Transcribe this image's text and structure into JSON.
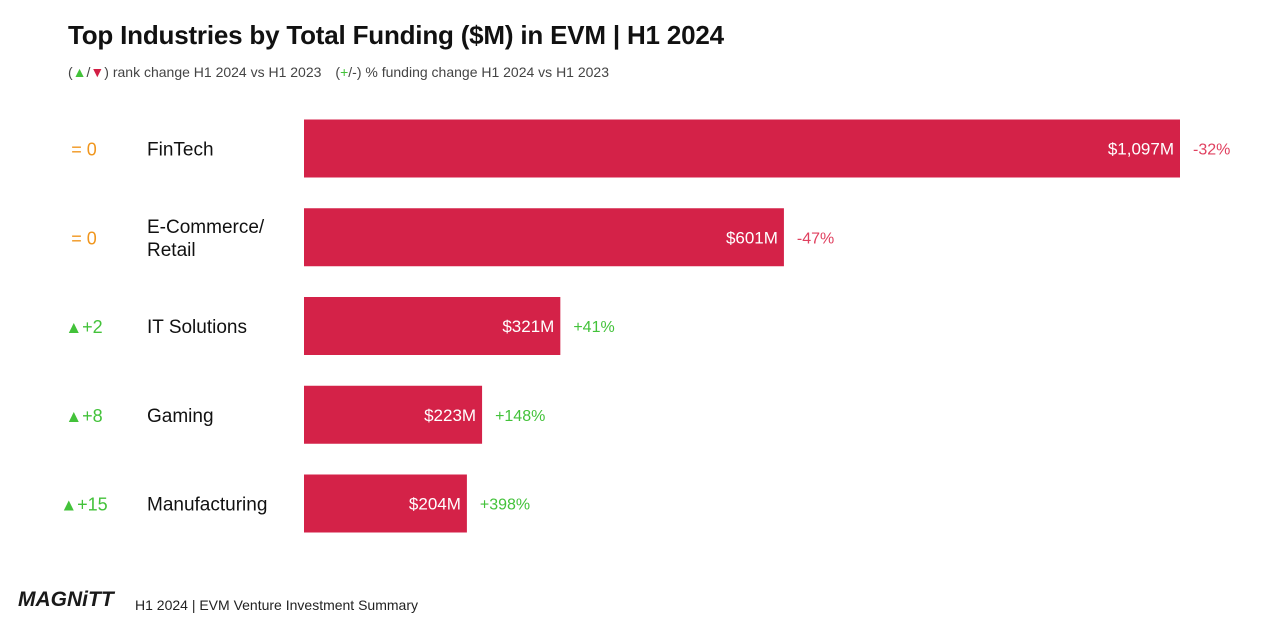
{
  "title": "Top Industries by Total Funding ($M) in EVM | H1 2024",
  "subtitle": {
    "part1_open": "(",
    "part1_up": "▲",
    "part1_sep": "/",
    "part1_down": "▼",
    "part1_close": ") rank change H1 2024 vs H1 2023",
    "part2_open": "(",
    "part2_plus": "+",
    "part2_close": "/-) % funding change H1 2024 vs H1 2023"
  },
  "colors": {
    "bar": "#d42248",
    "positive": "#43c23a",
    "negative": "#e0405f",
    "neutral": "#f0961e",
    "text": "#111111"
  },
  "chart_data": {
    "type": "bar",
    "orientation": "horizontal",
    "unit": "$M",
    "categories": [
      [
        "FinTech"
      ],
      [
        "E-Commerce/",
        "Retail"
      ],
      [
        "IT Solutions"
      ],
      [
        "Gaming"
      ],
      [
        "Manufacturing"
      ]
    ],
    "values": [
      1097,
      601,
      321,
      223,
      204
    ],
    "value_labels": [
      "$1,097M",
      "$601M",
      "$321M",
      "$223M",
      "$204M"
    ],
    "pct_change": [
      "-32%",
      "-47%",
      "+41%",
      "+148%",
      "+398%"
    ],
    "pct_direction": [
      "down",
      "down",
      "up",
      "up",
      "up"
    ],
    "rank_change": [
      {
        "symbol": "=",
        "text": "0",
        "direction": "neutral"
      },
      {
        "symbol": "=",
        "text": "0",
        "direction": "neutral"
      },
      {
        "symbol": "▲",
        "text": "+2",
        "direction": "up"
      },
      {
        "symbol": "▲",
        "text": "+8",
        "direction": "up"
      },
      {
        "symbol": "▲",
        "text": "+15",
        "direction": "up"
      }
    ]
  },
  "footer": {
    "logo": "MAGNiTT",
    "text": "H1 2024 | EVM Venture Investment Summary"
  }
}
